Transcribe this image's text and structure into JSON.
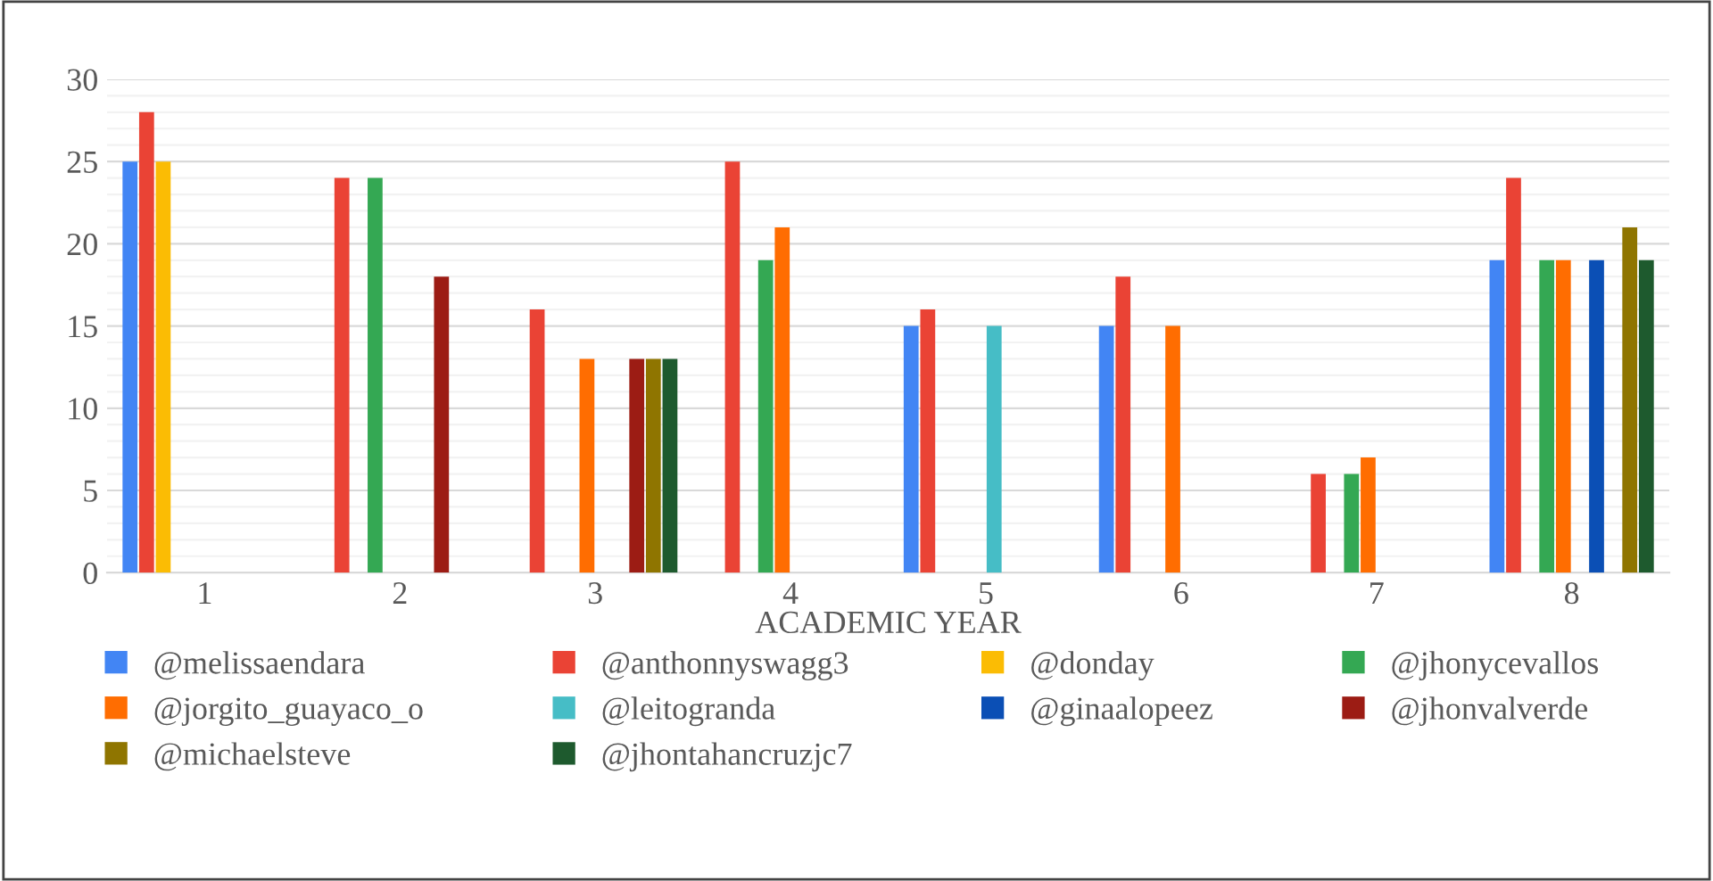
{
  "chart_data": {
    "type": "bar",
    "xlabel": "ACADEMIC YEAR",
    "categories": [
      "1",
      "2",
      "3",
      "4",
      "5",
      "6",
      "7",
      "8"
    ],
    "ylim": [
      0,
      30
    ],
    "yticks": [
      0,
      {
        "value": 1,
        "label": null
      },
      {
        "value": 2,
        "label": null
      },
      {
        "value": 3,
        "label": null
      },
      {
        "value": 4,
        "label": null
      },
      5,
      {
        "value": 6,
        "label": null
      },
      {
        "value": 7,
        "label": null
      },
      {
        "value": 8,
        "label": null
      },
      {
        "value": 9,
        "label": null
      },
      10,
      {
        "value": 11,
        "label": null
      },
      {
        "value": 12,
        "label": null
      },
      {
        "value": 13,
        "label": null
      },
      {
        "value": 14,
        "label": null
      },
      15,
      {
        "value": 16,
        "label": null
      },
      {
        "value": 17,
        "label": null
      },
      {
        "value": 18,
        "label": null
      },
      {
        "value": 19,
        "label": null
      },
      20,
      {
        "value": 21,
        "label": null
      },
      {
        "value": 22,
        "label": null
      },
      {
        "value": 23,
        "label": null
      },
      {
        "value": 24,
        "label": null
      },
      25,
      {
        "value": 26,
        "label": null
      },
      {
        "value": 27,
        "label": null
      },
      {
        "value": 28,
        "label": null
      },
      {
        "value": 29,
        "label": null
      },
      30
    ],
    "grid": "y",
    "legend": "bottom",
    "series": [
      {
        "name": "@melissaendara",
        "color": "#4285f4",
        "values": [
          25,
          0,
          0,
          0,
          15,
          15,
          0,
          19
        ]
      },
      {
        "name": "@anthonnyswagg3",
        "color": "#ea4335",
        "values": [
          28,
          24,
          16,
          25,
          16,
          18,
          6,
          24
        ]
      },
      {
        "name": "@donday",
        "color": "#fbbc04",
        "values": [
          25,
          0,
          0,
          0,
          0,
          0,
          0,
          0
        ]
      },
      {
        "name": "@jhonycevallos",
        "color": "#34a853",
        "values": [
          0,
          24,
          0,
          19,
          0,
          0,
          6,
          19
        ]
      },
      {
        "name": "@jorgito_guayaco_o",
        "color": "#ff6d01",
        "values": [
          0,
          0,
          13,
          21,
          0,
          15,
          7,
          19
        ]
      },
      {
        "name": "@leitogranda",
        "color": "#46bdc6",
        "values": [
          0,
          0,
          0,
          0,
          15,
          0,
          0,
          0
        ]
      },
      {
        "name": "@ginaalopeez",
        "color": "#0b4fb5",
        "values": [
          0,
          0,
          0,
          0,
          0,
          0,
          0,
          19
        ]
      },
      {
        "name": "@jhonvalverde",
        "color": "#9c1c14",
        "values": [
          0,
          18,
          13,
          0,
          0,
          0,
          0,
          0
        ]
      },
      {
        "name": "@michaelsteve",
        "color": "#8f7500",
        "values": [
          0,
          0,
          13,
          0,
          0,
          0,
          0,
          21
        ]
      },
      {
        "name": "@jhontahancruzjc7",
        "color": "#1e5a2e",
        "values": [
          0,
          0,
          13,
          0,
          0,
          0,
          0,
          19
        ]
      }
    ]
  }
}
